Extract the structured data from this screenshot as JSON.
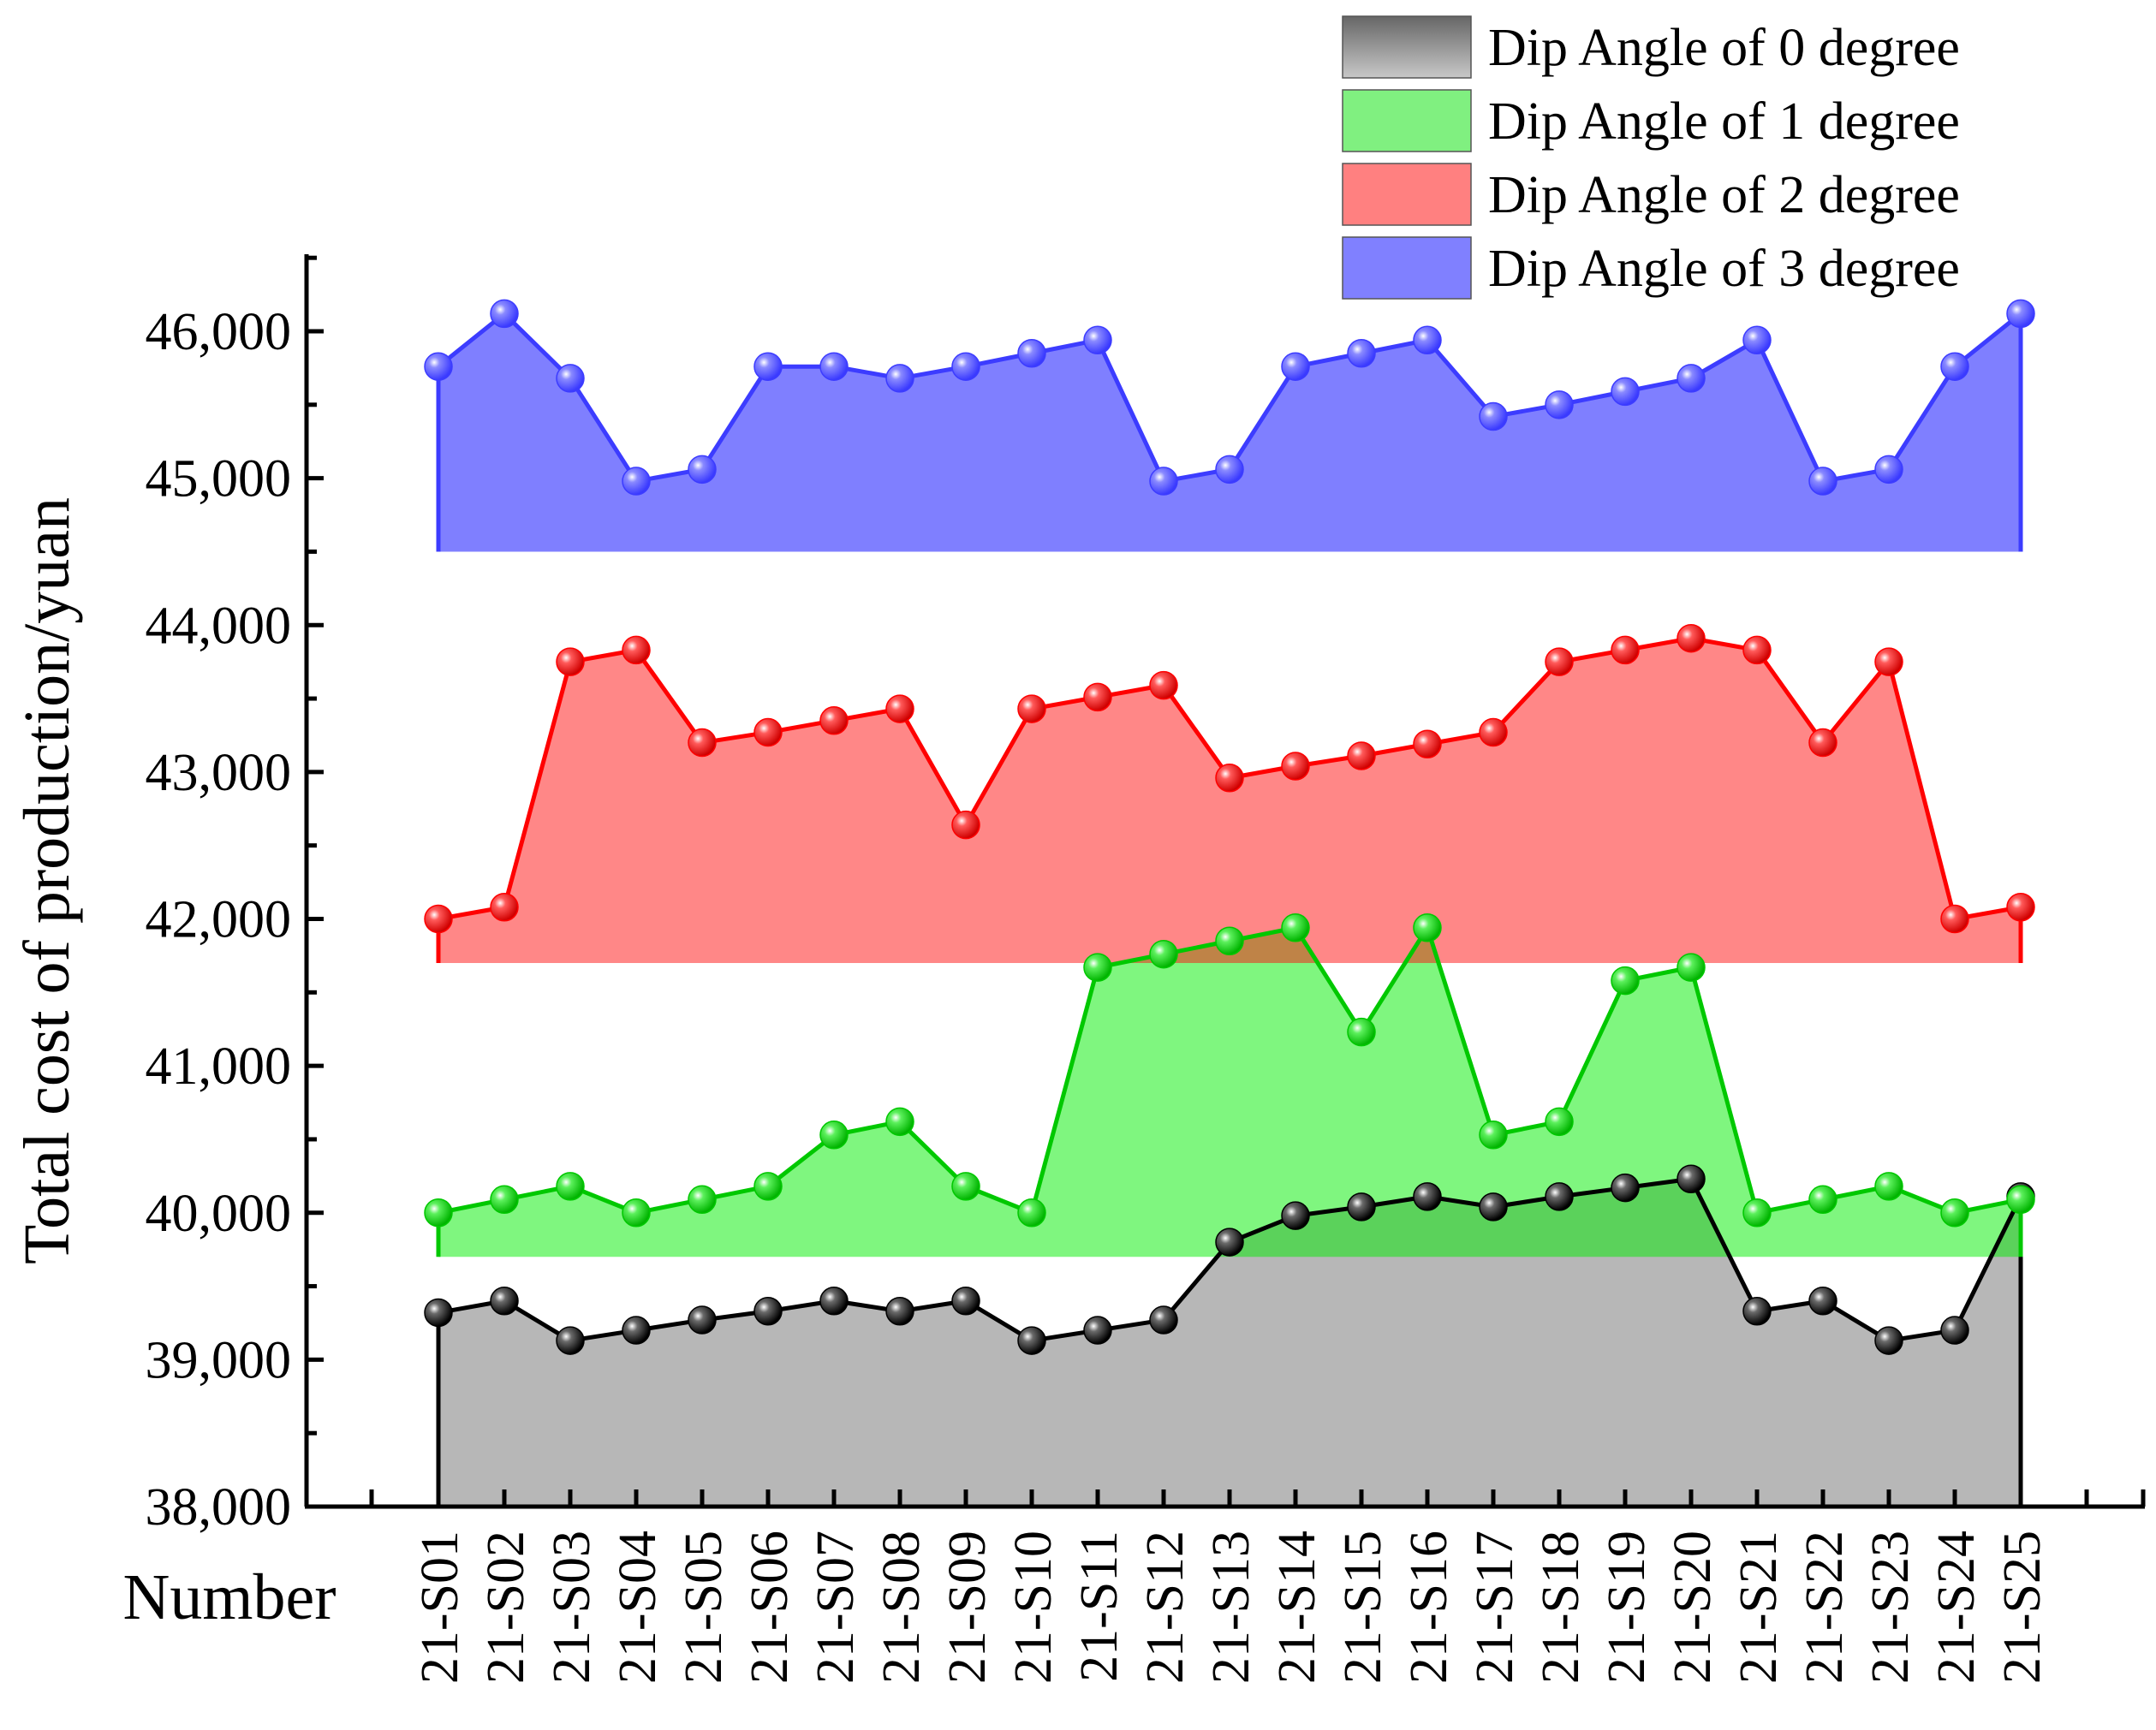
{
  "chart_data": {
    "type": "area",
    "title": "",
    "xlabel": "Number",
    "ylabel": "Total cost of production/yuan",
    "ylim": [
      38000,
      46500
    ],
    "yticks": [
      38000,
      39000,
      40000,
      41000,
      42000,
      43000,
      44000,
      45000,
      46000
    ],
    "ytick_labels": [
      "38,000",
      "39,000",
      "40,000",
      "41,000",
      "42,000",
      "43,000",
      "44,000",
      "45,000",
      "46,000"
    ],
    "categories": [
      "21-S01",
      "21-S02",
      "21-S03",
      "21-S04",
      "21-S05",
      "21-S06",
      "21-S07",
      "21-S08",
      "21-S09",
      "21-S10",
      "21-S11",
      "21-S12",
      "21-S13",
      "21-S14",
      "21-S15",
      "21-S16",
      "21-S17",
      "21-S18",
      "21-S19",
      "21-S20",
      "21-S21",
      "21-S22",
      "21-S23",
      "21-S24",
      "21-S25"
    ],
    "legend_position": "top-right",
    "grid": false,
    "series": [
      {
        "name": "Dip Angle of 0 degree",
        "line_color": "#000000",
        "fill_color": "#999999",
        "area_base": 38000,
        "values": [
          39320,
          39400,
          39130,
          39200,
          39270,
          39330,
          39400,
          39330,
          39400,
          39130,
          39200,
          39270,
          39800,
          39980,
          40040,
          40110,
          40040,
          40110,
          40170,
          40230,
          39330,
          39400,
          39130,
          39200,
          40110
        ]
      },
      {
        "name": "Dip Angle of 1 degree",
        "line_color": "#00c800",
        "fill_color": "#00ee00",
        "area_base": 39700,
        "values": [
          40000,
          40090,
          40180,
          40000,
          40090,
          40180,
          40530,
          40620,
          40180,
          40000,
          41670,
          41760,
          41850,
          41940,
          41230,
          41940,
          40530,
          40620,
          41580,
          41670,
          40000,
          40090,
          40180,
          40000,
          40090
        ]
      },
      {
        "name": "Dip Angle of 2 degree",
        "line_color": "#ff0000",
        "fill_color": "#ff1010",
        "area_base": 41700,
        "values": [
          42000,
          42080,
          43750,
          43830,
          43200,
          43270,
          43350,
          43430,
          42640,
          43430,
          43510,
          43590,
          42960,
          43040,
          43110,
          43190,
          43270,
          43750,
          43830,
          43910,
          43830,
          43200,
          43750,
          42000,
          42080
        ]
      },
      {
        "name": "Dip Angle of 3 degree",
        "line_color": "#3c3cff",
        "fill_color": "#0000ff",
        "area_base": 44500,
        "values": [
          45760,
          46120,
          45680,
          44980,
          45060,
          45760,
          45760,
          45680,
          45760,
          45850,
          45940,
          44980,
          45060,
          45760,
          45850,
          45940,
          45420,
          45500,
          45590,
          45680,
          45940,
          44980,
          45060,
          45760,
          46120
        ]
      }
    ]
  }
}
